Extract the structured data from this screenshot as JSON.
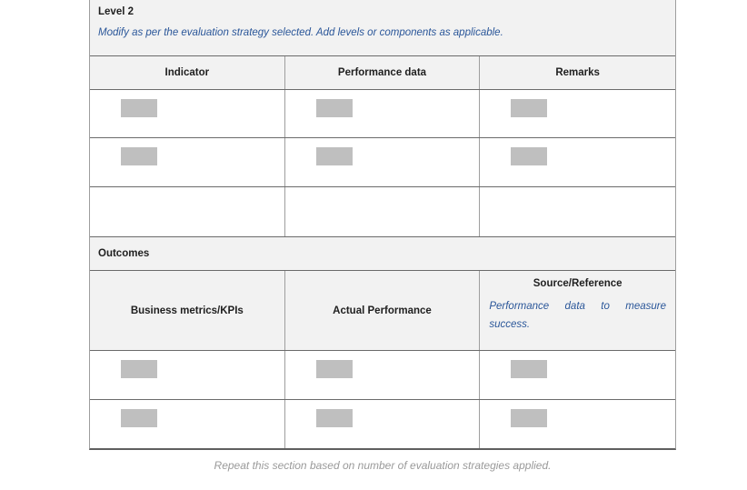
{
  "document": {
    "level2_section": {
      "title": "Level 2",
      "instruction": "Modify as per the evaluation strategy selected. Add levels or components as applicable.",
      "table": {
        "columns": [
          "Indicator",
          "Performance data",
          "Remarks"
        ],
        "rows": [
          {
            "cells": [
              "placeholder",
              "placeholder",
              "placeholder"
            ]
          },
          {
            "cells": [
              "placeholder",
              "placeholder",
              "placeholder"
            ]
          },
          {
            "cells": [
              "empty",
              "empty",
              "empty"
            ]
          }
        ]
      }
    },
    "outcomes_section": {
      "title": "Outcomes",
      "table": {
        "columns": [
          {
            "label": "Business metrics/KPIs",
            "note": ""
          },
          {
            "label": "Actual Performance",
            "note": ""
          },
          {
            "label": "Source/Reference",
            "note": "Performance data to measure success."
          }
        ],
        "rows": [
          {
            "cells": [
              "placeholder",
              "placeholder",
              "placeholder"
            ]
          },
          {
            "cells": [
              "placeholder",
              "placeholder",
              "placeholder"
            ]
          }
        ]
      }
    },
    "footer_note": "Repeat this section based on number of evaluation strategies applied."
  },
  "colors": {
    "section_band_bg": "#f2f2f2",
    "header_row_bg": "#f2f2f2",
    "placeholder_gray": "#bfbfbf",
    "instruction_blue": "#2a5699",
    "footer_gray": "#9a9a9a",
    "border_horizontal": "#6b6b6b",
    "border_vertical": "#9e9e9e",
    "text_dark": "#1f1f1f"
  }
}
